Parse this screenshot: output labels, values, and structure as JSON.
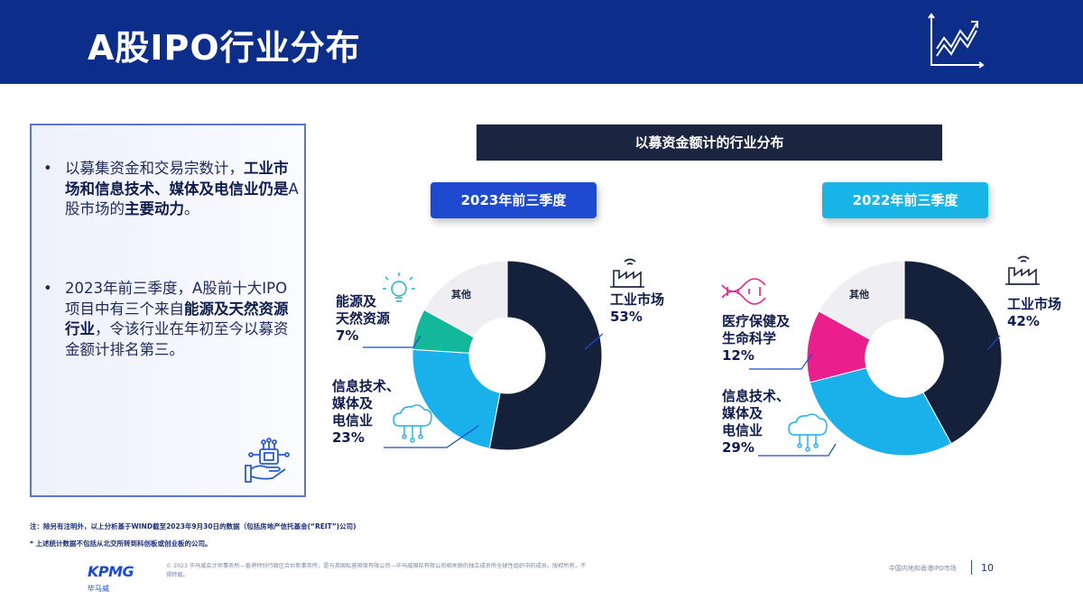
{
  "header": {
    "title": "A股IPO行业分布"
  },
  "bullets": {
    "b1_pre": "以募集资金和交易宗数计，",
    "b1_bold": "工业市场和信息技术、媒体及电信业仍是",
    "b1_mid": "A股市场的",
    "b1_bold2": "主要动力",
    "b1_end": "。",
    "b2_pre": "2023年前三季度，A股前十大IPO项目中有三个来自",
    "b2_bold": "能源及天然资源行业",
    "b2_end": "，令该行业在年初至今以募资金额计排名第三。"
  },
  "banner": "以募资金额计的行业分布",
  "chart_data": [
    {
      "type": "pie",
      "title": "2023年前三季度",
      "categories": [
        "工业市场",
        "信息技术、媒体及电信业",
        "能源及天然资源",
        "其他"
      ],
      "values": [
        53,
        23,
        7,
        17
      ],
      "colors": [
        "#15203b",
        "#1ab0ea",
        "#13b79a",
        "#efeff3"
      ]
    },
    {
      "type": "pie",
      "title": "2022年前三季度",
      "categories": [
        "工业市场",
        "信息技术、媒体及电信业",
        "医疗保健及生命科学",
        "其他"
      ],
      "values": [
        42,
        29,
        12,
        17
      ],
      "colors": [
        "#15203b",
        "#1ab0ea",
        "#ea1e8c",
        "#efeff3"
      ]
    }
  ],
  "labels": {
    "c1_industrial": "工业市场",
    "c1_industrial_pct": "53%",
    "c1_energy_1": "能源及",
    "c1_energy_2": "天然资源",
    "c1_energy_pct": "7%",
    "c1_tmt_1": "信息技术、",
    "c1_tmt_2": "媒体及",
    "c1_tmt_3": "电信业",
    "c1_tmt_pct": "23%",
    "c1_other": "其他",
    "c2_industrial": "工业市场",
    "c2_industrial_pct": "42%",
    "c2_health_1": "医疗保健及",
    "c2_health_2": "生命科学",
    "c2_health_pct": "12%",
    "c2_tmt_1": "信息技术、",
    "c2_tmt_2": "媒体及",
    "c2_tmt_3": "电信业",
    "c2_tmt_pct": "29%",
    "c2_other": "其他"
  },
  "notes": {
    "note1": "注：除另有注明外，以上分析基于WIND截至2023年9月30日的数据（包括房地产信托基金(“REIT”)公司)",
    "note2": "* 上述统计数据不包括从北交所转到科创板或创业板的公司。"
  },
  "footer": {
    "copyright": "© 2023 毕马威会计师事务所—香港特别行政区合伙制事务所，是与英国私营担保有限公司—毕马威国际有限公司相关联的独立成员所全球性组织中的成员。版权所有，不得转载。",
    "brand": "KPMG",
    "brand_cn": "毕马威",
    "doc_title": "中国内地和香港IPO市场",
    "page": "10"
  },
  "icons": [
    "growth-chart-icon",
    "factory-icon",
    "lightbulb-icon",
    "dna-icon",
    "cloud-network-icon",
    "hand-chip-icon"
  ]
}
